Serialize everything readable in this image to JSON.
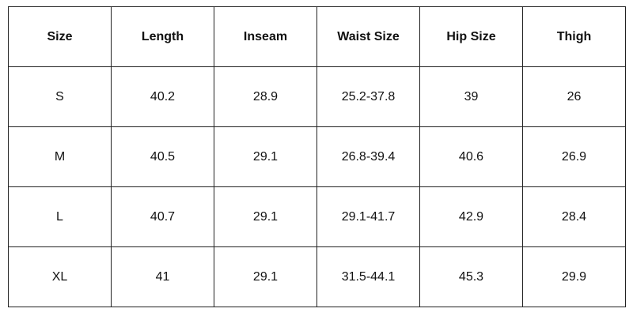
{
  "table": {
    "header": [
      "Size",
      "Length",
      "Inseam",
      "Waist Size",
      "Hip Size",
      "Thigh"
    ],
    "rows": [
      [
        "S",
        "40.2",
        "28.9",
        "25.2-37.8",
        "39",
        "26"
      ],
      [
        "M",
        "40.5",
        "29.1",
        "26.8-39.4",
        "40.6",
        "26.9"
      ],
      [
        "L",
        "40.7",
        "29.1",
        "29.1-41.7",
        "42.9",
        "28.4"
      ],
      [
        "XL",
        "41",
        "29.1",
        "31.5-44.1",
        "45.3",
        "29.9"
      ]
    ]
  }
}
